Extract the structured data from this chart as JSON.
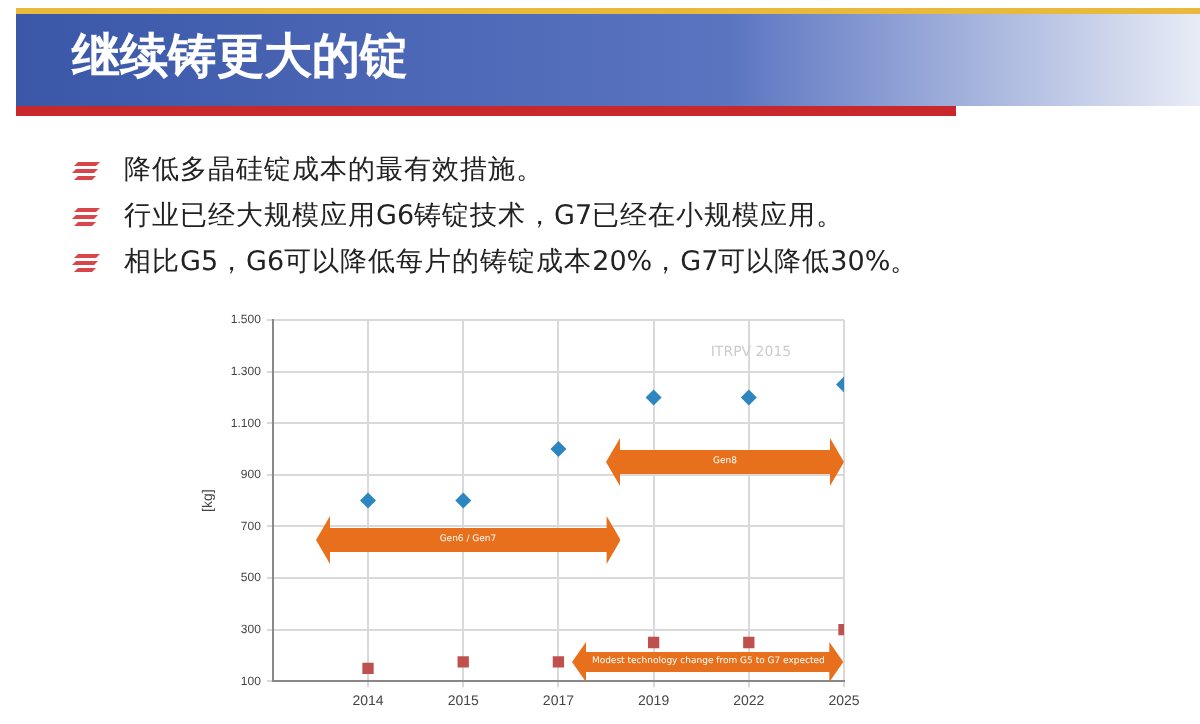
{
  "chart_data": {
    "type": "scatter",
    "title": "继续铸更大的锭",
    "annotations": [
      "降低多晶硅锭成本的最有效措施。",
      "行业已经大规模应用G6铸锭技术，G7已经在小规模应用。",
      "相比G5，G6可以降低每片的铸锭成本20%，G7可以降低30%。",
      "ITRPV 2015",
      "Gen6 / Gen7",
      "Gen8",
      "Modest technology change from G5 to G7 expected"
    ],
    "ylabel": "[kg]",
    "categories": [
      "2014",
      "2015",
      "2017",
      "2019",
      "2022",
      "2025"
    ],
    "series": [
      {
        "color": "#2e86c1",
        "marker": "diamond",
        "values": [
          800,
          800,
          1000,
          1200,
          1200,
          1250
        ]
      },
      {
        "color": "#c0504d",
        "marker": "square",
        "values": [
          150,
          175,
          175,
          250,
          250,
          300
        ]
      }
    ],
    "ylim": [
      100,
      1500
    ],
    "yticks": [
      {
        "value": 100,
        "label": "100"
      },
      {
        "value": 300,
        "label": "300"
      },
      {
        "value": 500,
        "label": "500"
      },
      {
        "value": 700,
        "label": "700"
      },
      {
        "value": 900,
        "label": "900"
      },
      {
        "value": 1100,
        "label": "1.100"
      },
      {
        "value": 1300,
        "label": "1.300"
      },
      {
        "value": 1500,
        "label": "1.500"
      }
    ],
    "grid": true,
    "legend": false
  }
}
